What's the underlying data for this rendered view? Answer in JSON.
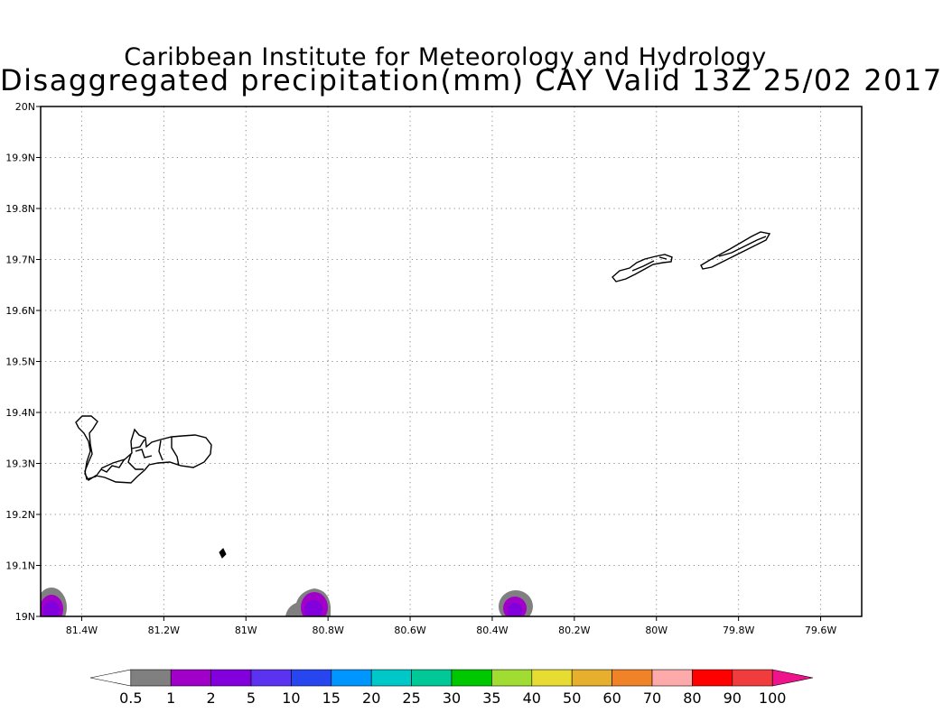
{
  "header": {
    "title_line1": "Caribbean Institute for Meteorology and Hydrology",
    "title_line2": "Disaggregated precipitation(mm) CAY Valid 13Z 25/02 2017"
  },
  "map": {
    "lon_range": [
      -81.5,
      -79.5
    ],
    "lat_range": [
      19.0,
      20.0
    ],
    "x_ticks": [
      "81.4W",
      "81.2W",
      "81W",
      "80.8W",
      "80.6W",
      "80.4W",
      "80.2W",
      "80W",
      "79.8W",
      "79.6W"
    ],
    "y_ticks": [
      "20N",
      "19.9N",
      "19.8N",
      "19.7N",
      "19.6N",
      "19.5N",
      "19.4N",
      "19.3N",
      "19.2N",
      "19.1N",
      "19N"
    ],
    "grid": "dotted",
    "islands": [
      "Grand Cayman",
      "Little Cayman",
      "Cayman Brac"
    ],
    "precip_cells": [
      {
        "lon": -81.47,
        "lat": 19.0,
        "max_class_mm": 2
      },
      {
        "lon": -80.83,
        "lat": 19.0,
        "max_class_mm": 2
      },
      {
        "lon": -80.34,
        "lat": 19.0,
        "max_class_mm": 2
      }
    ]
  },
  "colorbar": {
    "labels": [
      "0.5",
      "1",
      "2",
      "5",
      "10",
      "15",
      "20",
      "25",
      "30",
      "35",
      "40",
      "50",
      "60",
      "70",
      "80",
      "90",
      "100"
    ],
    "colors": [
      "#ffffff",
      "#808080",
      "#a000c8",
      "#8200dc",
      "#5a32f0",
      "#2846f0",
      "#0096ff",
      "#00c8c8",
      "#00c896",
      "#00c800",
      "#a0dc32",
      "#e6dc32",
      "#e6af2d",
      "#f08228",
      "#fcaaaa",
      "#ff0000",
      "#f03c3c",
      "#f0148c"
    ]
  }
}
